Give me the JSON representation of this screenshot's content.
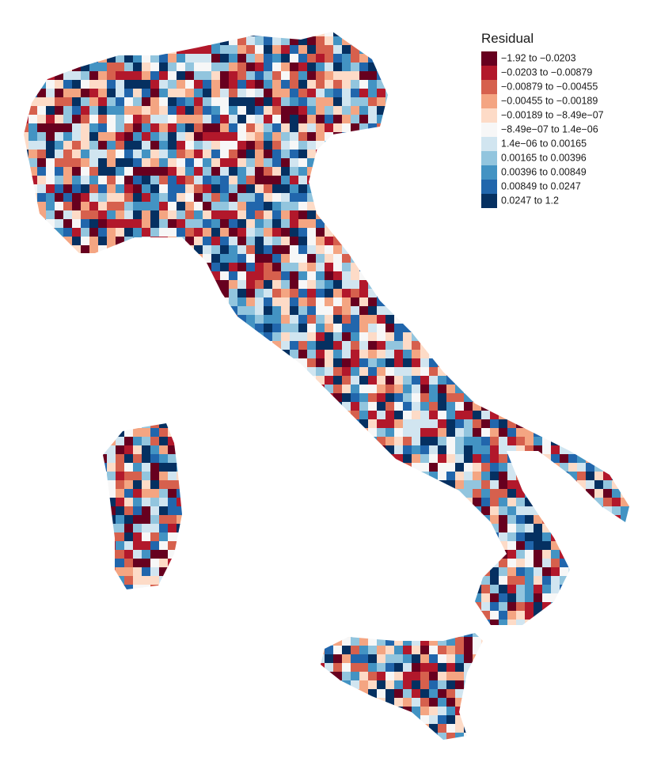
{
  "legend": {
    "title": "Residual",
    "entries": [
      {
        "label": "−1.92 to −0.0203",
        "color": "#67001f"
      },
      {
        "label": "−0.0203 to −0.00879",
        "color": "#b2182b"
      },
      {
        "label": "−0.00879 to −0.00455",
        "color": "#d6604d"
      },
      {
        "label": "−0.00455 to −0.00189",
        "color": "#f4a582"
      },
      {
        "label": "−0.00189 to −8.49e−07",
        "color": "#fddbc7"
      },
      {
        "label": "−8.49e−07 to 1.4e−06",
        "color": "#f7f7f7"
      },
      {
        "label": "1.4e−06 to 0.00165",
        "color": "#d1e5f0"
      },
      {
        "label": "0.00165 to 0.00396",
        "color": "#92c5de"
      },
      {
        "label": "0.00396 to 0.00849",
        "color": "#4393c3"
      },
      {
        "label": "0.00849 to 0.0247",
        "color": "#2166ac"
      },
      {
        "label": "0.0247 to 1.2",
        "color": "#053061"
      }
    ]
  }
}
